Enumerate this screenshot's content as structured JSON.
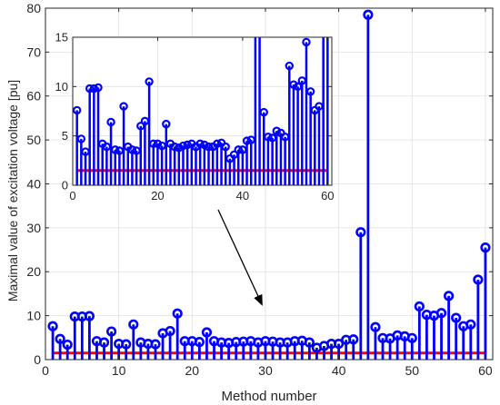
{
  "chart_data": {
    "type": "stem",
    "title": "",
    "xlabel": "Method number",
    "ylabel": "Maximal value of excitation voltage [pu]",
    "xlim": [
      0,
      61
    ],
    "ylim": [
      0,
      80
    ],
    "xticks": [
      0,
      10,
      20,
      30,
      40,
      50,
      60
    ],
    "yticks": [
      0,
      10,
      20,
      30,
      40,
      50,
      60,
      70,
      80
    ],
    "grid": true,
    "reference_line": {
      "value": 1.5,
      "color": "#ff0000"
    },
    "series": [
      {
        "color": "#0000ff",
        "x": [
          1,
          2,
          3,
          4,
          5,
          6,
          7,
          8,
          9,
          10,
          11,
          12,
          13,
          14,
          15,
          16,
          17,
          18,
          19,
          20,
          21,
          22,
          23,
          24,
          25,
          26,
          27,
          28,
          29,
          30,
          31,
          32,
          33,
          34,
          35,
          36,
          37,
          38,
          39,
          40,
          41,
          42,
          43,
          44,
          45,
          46,
          47,
          48,
          49,
          50,
          51,
          52,
          53,
          54,
          55,
          56,
          57,
          58,
          59,
          60
        ],
        "values": [
          7.6,
          4.7,
          3.4,
          9.8,
          9.8,
          9.9,
          4.2,
          3.9,
          6.4,
          3.6,
          3.5,
          8.0,
          3.9,
          3.6,
          3.5,
          6.0,
          6.5,
          10.5,
          4.2,
          4.2,
          4.0,
          6.2,
          4.2,
          3.9,
          3.8,
          4.0,
          4.1,
          4.2,
          3.9,
          4.2,
          4.1,
          3.9,
          3.9,
          4.2,
          4.3,
          3.9,
          2.7,
          3.1,
          3.6,
          3.6,
          4.5,
          4.6,
          29.0,
          78.5,
          7.4,
          4.9,
          4.8,
          5.5,
          5.3,
          4.9,
          12.1,
          10.2,
          10.0,
          10.6,
          14.5,
          9.5,
          7.6,
          8.0,
          18.2,
          25.5
        ]
      }
    ],
    "inset": {
      "xlim": [
        0,
        61
      ],
      "ylim": [
        0,
        15
      ],
      "xticks": [
        0,
        20,
        40,
        60
      ],
      "yticks": [
        0,
        5,
        10,
        15
      ]
    },
    "annotation": {
      "type": "arrow",
      "label": ""
    }
  }
}
